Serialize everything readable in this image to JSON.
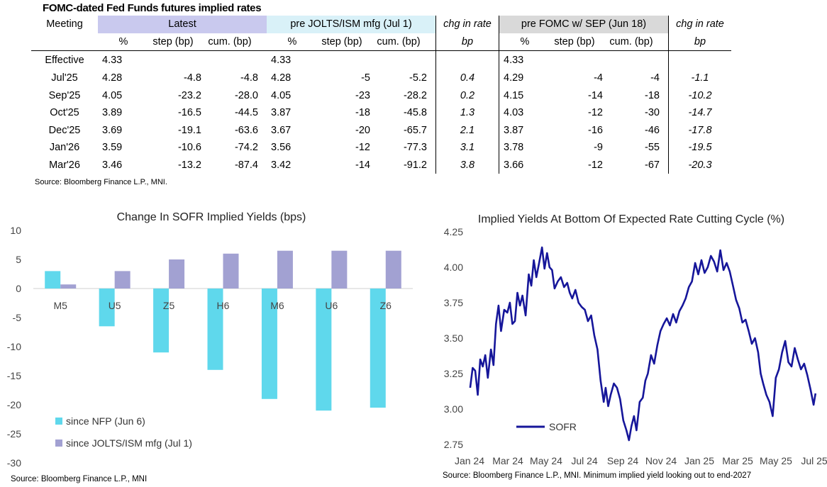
{
  "table": {
    "title": "FOMC-dated Fed Funds futures implied rates",
    "meeting_label": "Meeting",
    "groups": {
      "latest": "Latest",
      "jolts": "pre JOLTS/ISM mfg (Jul 1)",
      "chg1": "chg in rate",
      "fomc": "pre FOMC w/ SEP (Jun 18)",
      "chg2": "chg in rate"
    },
    "sub": {
      "pct": "%",
      "step": "step (bp)",
      "cum": "cum. (bp)",
      "bp": "bp"
    },
    "rows": [
      {
        "m": "Effective",
        "l_pct": "4.33",
        "l_step": "",
        "l_cum": "",
        "j_pct": "4.33",
        "j_step": "",
        "j_cum": "",
        "chg1": "",
        "f_pct": "4.33",
        "f_step": "",
        "f_cum": "",
        "chg2": ""
      },
      {
        "m": "Jul'25",
        "l_pct": "4.28",
        "l_step": "-4.8",
        "l_cum": "-4.8",
        "j_pct": "4.28",
        "j_step": "-5",
        "j_cum": "-5.2",
        "chg1": "0.4",
        "f_pct": "4.29",
        "f_step": "-4",
        "f_cum": "-4",
        "chg2": "-1.1"
      },
      {
        "m": "Sep'25",
        "l_pct": "4.05",
        "l_step": "-23.2",
        "l_cum": "-28.0",
        "j_pct": "4.05",
        "j_step": "-23",
        "j_cum": "-28.2",
        "chg1": "0.2",
        "f_pct": "4.15",
        "f_step": "-14",
        "f_cum": "-18",
        "chg2": "-10.2"
      },
      {
        "m": "Oct'25",
        "l_pct": "3.89",
        "l_step": "-16.5",
        "l_cum": "-44.5",
        "j_pct": "3.87",
        "j_step": "-18",
        "j_cum": "-45.8",
        "chg1": "1.3",
        "f_pct": "4.03",
        "f_step": "-12",
        "f_cum": "-30",
        "chg2": "-14.7"
      },
      {
        "m": "Dec'25",
        "l_pct": "3.69",
        "l_step": "-19.1",
        "l_cum": "-63.6",
        "j_pct": "3.67",
        "j_step": "-20",
        "j_cum": "-65.7",
        "chg1": "2.1",
        "f_pct": "3.87",
        "f_step": "-16",
        "f_cum": "-46",
        "chg2": "-17.8"
      },
      {
        "m": "Jan'26",
        "l_pct": "3.59",
        "l_step": "-10.6",
        "l_cum": "-74.2",
        "j_pct": "3.56",
        "j_step": "-12",
        "j_cum": "-77.3",
        "chg1": "3.1",
        "f_pct": "3.78",
        "f_step": "-9",
        "f_cum": "-55",
        "chg2": "-19.5"
      },
      {
        "m": "Mar'26",
        "l_pct": "3.46",
        "l_step": "-13.2",
        "l_cum": "-87.4",
        "j_pct": "3.42",
        "j_step": "-14",
        "j_cum": "-91.2",
        "chg1": "3.8",
        "f_pct": "3.66",
        "f_step": "-12",
        "f_cum": "-67",
        "chg2": "-20.3"
      }
    ],
    "source": "Source: Bloomberg Finance L.P., MNI."
  },
  "chart_data": [
    {
      "type": "bar",
      "title": "Change In SOFR Implied Yields (bps)",
      "categories": [
        "M5",
        "U5",
        "Z5",
        "H6",
        "M6",
        "U6",
        "Z6"
      ],
      "series": [
        {
          "name": "since NFP (Jun 6)",
          "values": [
            3,
            -6.5,
            -11,
            -14,
            -19,
            -21,
            -20.5
          ],
          "color": "#5fd8ec"
        },
        {
          "name": "since JOLTS/ISM mfg (Jul 1)",
          "values": [
            0.7,
            3,
            5,
            6,
            6.5,
            6.5,
            6.5
          ],
          "color": "#a2a1d2"
        }
      ],
      "ylim": [
        -30,
        10
      ],
      "yticks": [
        10,
        5,
        0,
        -5,
        -10,
        -15,
        -20,
        -25,
        -30
      ],
      "legend": "bottom-left",
      "source": "Source: Bloomberg Finance L.P., MNI"
    },
    {
      "type": "line",
      "title": "Implied Yields At Bottom Of Expected Rate Cutting Cycle (%)",
      "x_labels": [
        "Jan 24",
        "Mar 24",
        "May 24",
        "Jul 24",
        "Sep 24",
        "Nov 24",
        "Jan 25",
        "Mar 25",
        "May 25",
        "Jul 25"
      ],
      "x_range": [
        "2024-01-01",
        "2025-07-01"
      ],
      "ylim": [
        2.75,
        4.25
      ],
      "yticks": [
        "4.25",
        "4.00",
        "3.75",
        "3.50",
        "3.25",
        "3.00",
        "2.75"
      ],
      "series": [
        {
          "name": "SOFR",
          "color": "#16169a",
          "x": [
            "2024-01-02",
            "2024-01-06",
            "2024-01-10",
            "2024-01-14",
            "2024-01-18",
            "2024-01-22",
            "2024-01-26",
            "2024-01-30",
            "2024-02-04",
            "2024-02-08",
            "2024-02-12",
            "2024-02-16",
            "2024-02-20",
            "2024-02-25",
            "2024-03-01",
            "2024-03-05",
            "2024-03-09",
            "2024-03-13",
            "2024-03-17",
            "2024-03-21",
            "2024-03-25",
            "2024-03-30",
            "2024-04-04",
            "2024-04-08",
            "2024-04-12",
            "2024-04-16",
            "2024-04-20",
            "2024-04-25",
            "2024-04-29",
            "2024-05-03",
            "2024-05-07",
            "2024-05-11",
            "2024-05-15",
            "2024-05-20",
            "2024-05-25",
            "2024-05-30",
            "2024-06-04",
            "2024-06-08",
            "2024-06-12",
            "2024-06-17",
            "2024-06-22",
            "2024-06-27",
            "2024-07-02",
            "2024-07-07",
            "2024-07-12",
            "2024-07-17",
            "2024-07-22",
            "2024-07-27",
            "2024-08-01",
            "2024-08-04",
            "2024-08-08",
            "2024-08-12",
            "2024-08-17",
            "2024-08-22",
            "2024-08-27",
            "2024-09-01",
            "2024-09-06",
            "2024-09-10",
            "2024-09-14",
            "2024-09-18",
            "2024-09-22",
            "2024-09-27",
            "2024-10-02",
            "2024-10-06",
            "2024-10-10",
            "2024-10-15",
            "2024-10-20",
            "2024-10-25",
            "2024-10-30",
            "2024-11-04",
            "2024-11-09",
            "2024-11-14",
            "2024-11-19",
            "2024-11-24",
            "2024-11-29",
            "2024-12-04",
            "2024-12-09",
            "2024-12-14",
            "2024-12-19",
            "2024-12-24",
            "2024-12-29",
            "2025-01-03",
            "2025-01-08",
            "2025-01-13",
            "2025-01-18",
            "2025-01-23",
            "2025-01-28",
            "2025-02-02",
            "2025-02-07",
            "2025-02-12",
            "2025-02-17",
            "2025-02-22",
            "2025-02-27",
            "2025-03-04",
            "2025-03-09",
            "2025-03-14",
            "2025-03-19",
            "2025-03-24",
            "2025-03-29",
            "2025-04-03",
            "2025-04-07",
            "2025-04-11",
            "2025-04-16",
            "2025-04-21",
            "2025-04-26",
            "2025-05-01",
            "2025-05-06",
            "2025-05-11",
            "2025-05-16",
            "2025-05-21",
            "2025-05-26",
            "2025-05-31",
            "2025-06-05",
            "2025-06-10",
            "2025-06-15",
            "2025-06-20",
            "2025-06-25",
            "2025-06-30",
            "2025-07-03"
          ],
          "y": [
            3.15,
            3.29,
            3.27,
            3.1,
            3.35,
            3.3,
            3.38,
            3.22,
            3.42,
            3.31,
            3.6,
            3.73,
            3.55,
            3.7,
            3.68,
            3.75,
            3.6,
            3.62,
            3.82,
            3.73,
            3.8,
            3.66,
            3.95,
            3.87,
            4.05,
            3.93,
            4.02,
            4.14,
            3.99,
            4.1,
            4.0,
            3.98,
            3.85,
            3.9,
            3.93,
            3.86,
            3.89,
            3.82,
            3.78,
            3.84,
            3.75,
            3.72,
            3.7,
            3.62,
            3.66,
            3.52,
            3.42,
            3.2,
            3.05,
            3.15,
            3.02,
            3.1,
            3.18,
            3.15,
            3.07,
            2.92,
            2.85,
            2.78,
            2.88,
            2.95,
            2.85,
            3.05,
            3.08,
            3.2,
            3.25,
            3.38,
            3.32,
            3.45,
            3.55,
            3.6,
            3.64,
            3.59,
            3.67,
            3.61,
            3.69,
            3.73,
            3.78,
            3.86,
            3.9,
            4.03,
            3.95,
            4.05,
            3.96,
            4.0,
            4.08,
            4.04,
            3.97,
            4.12,
            3.98,
            4.03,
            3.97,
            3.87,
            3.77,
            3.71,
            3.61,
            3.63,
            3.55,
            3.46,
            3.5,
            3.4,
            3.25,
            3.18,
            3.1,
            3.05,
            2.95,
            3.22,
            3.28,
            3.4,
            3.48,
            3.33,
            3.3,
            3.43,
            3.35,
            3.28,
            3.32,
            3.24,
            3.14,
            3.03,
            3.11
          ]
        }
      ],
      "legend": "bottom-left",
      "source": "Source: Bloomberg Finance L.P., MNI. Minimum implied yield looking out to end-2027"
    }
  ]
}
